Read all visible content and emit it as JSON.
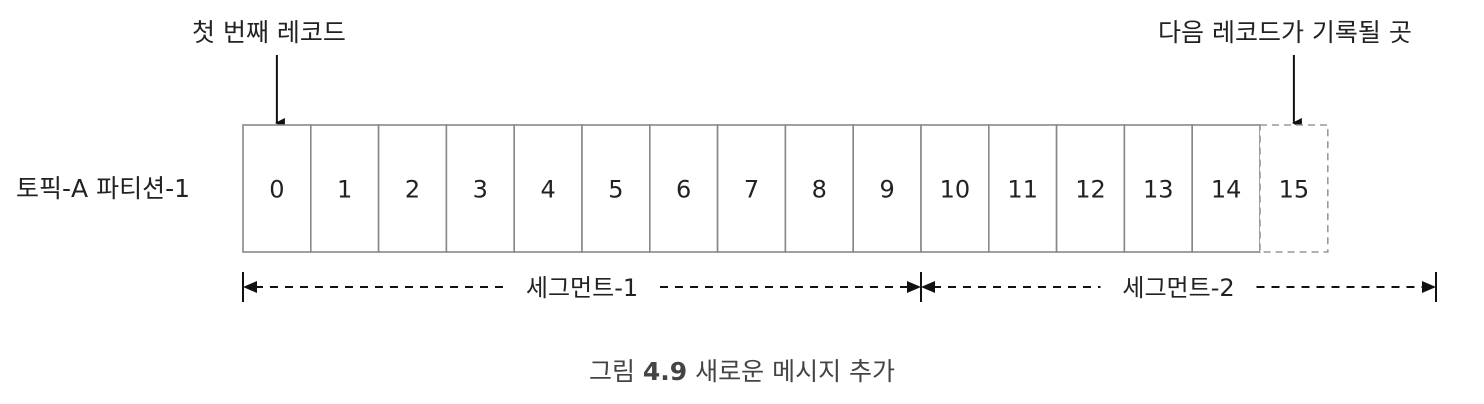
{
  "labels": {
    "first_record": "첫 번째 레코드",
    "next_record": "다음 레코드가 기록될 곳",
    "partition": "토픽-A 파티션-1"
  },
  "records": [
    "0",
    "1",
    "2",
    "3",
    "4",
    "5",
    "6",
    "7",
    "8",
    "9",
    "10",
    "11",
    "12",
    "13",
    "14"
  ],
  "next_slot": "15",
  "segments": [
    {
      "label": "세그먼트-1",
      "start_record": 0,
      "end_record": 9
    },
    {
      "label": "세그먼트-2",
      "start_record": 10,
      "end_record": 15
    }
  ],
  "caption": {
    "figure_label": "그림",
    "figure_number": "4.9",
    "title": "새로운 메시지 추가"
  },
  "colors": {
    "stroke": "#888888",
    "text": "#222222",
    "arrow": "#111111",
    "caption": "#444444"
  }
}
